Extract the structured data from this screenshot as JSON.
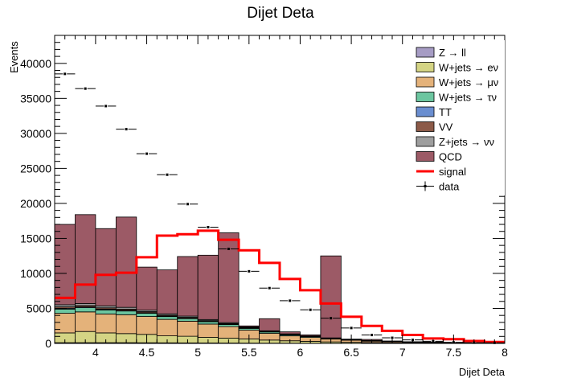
{
  "chart_data": {
    "type": "bar",
    "title": "Dijet Deta",
    "xlabel": "Dijet Deta",
    "ylabel": "Events",
    "xlim": [
      3.6,
      8.0
    ],
    "ylim": [
      0,
      44000
    ],
    "bin_width": 0.2,
    "bin_low_edges": [
      3.6,
      3.8,
      4.0,
      4.2,
      4.4,
      4.6,
      4.8,
      5.0,
      5.2,
      5.4,
      5.6,
      5.8,
      6.0,
      6.2,
      6.4,
      6.6,
      6.8,
      7.0,
      7.2,
      7.4,
      7.6,
      7.8
    ],
    "x_ticks": [
      4,
      4.5,
      5,
      5.5,
      6,
      6.5,
      7,
      7.5,
      8
    ],
    "x_tick_labels": [
      "4",
      "4.5",
      "5",
      "5.5",
      "6",
      "6.5",
      "7",
      "7.5",
      "8"
    ],
    "y_ticks": [
      0,
      5000,
      10000,
      15000,
      20000,
      25000,
      30000,
      35000,
      40000
    ],
    "y_tick_labels": [
      "0",
      "5000",
      "10000",
      "15000",
      "20000",
      "25000",
      "30000",
      "35000",
      "40000"
    ],
    "stack_series": [
      {
        "name": "Z → ll",
        "color": "#a69cc4",
        "values": [
          100,
          100,
          100,
          100,
          90,
          80,
          70,
          60,
          50,
          40,
          30,
          25,
          20,
          15,
          10,
          8,
          6,
          4,
          3,
          2,
          1,
          1
        ]
      },
      {
        "name": "W+jets → eν",
        "color": "#d4d484",
        "values": [
          1400,
          1600,
          1400,
          1300,
          1200,
          1000,
          950,
          800,
          700,
          600,
          450,
          350,
          280,
          200,
          150,
          110,
          80,
          60,
          40,
          30,
          20,
          10
        ]
      },
      {
        "name": "W+jets → μν",
        "color": "#e4b27a",
        "values": [
          2800,
          2800,
          2700,
          2700,
          2550,
          2350,
          2150,
          1900,
          1650,
          1250,
          950,
          700,
          550,
          400,
          300,
          200,
          150,
          100,
          70,
          50,
          30,
          20
        ]
      },
      {
        "name": "W+jets → τν",
        "color": "#6cc6a0",
        "values": [
          600,
          600,
          580,
          530,
          460,
          400,
          370,
          340,
          300,
          250,
          200,
          150,
          120,
          90,
          70,
          50,
          40,
          30,
          20,
          15,
          10,
          5
        ]
      },
      {
        "name": "TT",
        "color": "#6a8ed0",
        "values": [
          120,
          110,
          110,
          100,
          90,
          80,
          70,
          60,
          50,
          40,
          30,
          25,
          20,
          15,
          10,
          8,
          6,
          4,
          3,
          2,
          1,
          1
        ]
      },
      {
        "name": "VV",
        "color": "#8c5a48",
        "values": [
          200,
          200,
          190,
          170,
          150,
          130,
          120,
          100,
          90,
          80,
          70,
          60,
          45,
          40,
          30,
          25,
          20,
          15,
          10,
          8,
          5,
          3
        ]
      },
      {
        "name": "Z+jets → νν",
        "color": "#9e9e9e",
        "values": [
          300,
          290,
          280,
          250,
          210,
          190,
          170,
          150,
          130,
          100,
          70,
          50,
          35,
          30,
          20,
          15,
          10,
          8,
          5,
          3,
          2,
          1
        ]
      },
      {
        "name": "QCD",
        "color": "#9c5a66",
        "values": [
          11480,
          12700,
          11040,
          12900,
          6150,
          6270,
          8510,
          9190,
          12830,
          140,
          1730,
          290,
          150,
          11710,
          20,
          150,
          30,
          20,
          10,
          0,
          0,
          0
        ]
      }
    ],
    "signal": {
      "name": "signal",
      "color": "#ff0000",
      "values": [
        6500,
        8400,
        9800,
        10100,
        12300,
        15400,
        15600,
        16100,
        14800,
        13300,
        11500,
        9200,
        7600,
        5700,
        3800,
        2500,
        1800,
        1200,
        700,
        600,
        350,
        200
      ]
    },
    "data": {
      "name": "data",
      "color": "#000000",
      "values": [
        38500,
        36400,
        33900,
        30600,
        27100,
        24100,
        19900,
        16600,
        13500,
        10300,
        7900,
        6100,
        4800,
        3600,
        2200,
        1200,
        800,
        500,
        300,
        150,
        100,
        80
      ]
    },
    "legend": {
      "placement": "top-right",
      "entries": [
        {
          "label": "Z → ll",
          "kind": "fill",
          "color": "#a69cc4"
        },
        {
          "label": "W+jets → eν",
          "kind": "fill",
          "color": "#d4d484"
        },
        {
          "label": "W+jets → μν",
          "kind": "fill",
          "color": "#e4b27a"
        },
        {
          "label": "W+jets → τν",
          "kind": "fill",
          "color": "#6cc6a0"
        },
        {
          "label": "TT",
          "kind": "fill",
          "color": "#6a8ed0"
        },
        {
          "label": "VV",
          "kind": "fill",
          "color": "#8c5a48"
        },
        {
          "label": "Z+jets → νν",
          "kind": "fill",
          "color": "#9e9e9e"
        },
        {
          "label": "QCD",
          "kind": "fill",
          "color": "#9c5a66"
        },
        {
          "label": "signal",
          "kind": "line",
          "color": "#ff0000"
        },
        {
          "label": "data",
          "kind": "marker",
          "color": "#000000"
        }
      ]
    },
    "grid": false
  }
}
